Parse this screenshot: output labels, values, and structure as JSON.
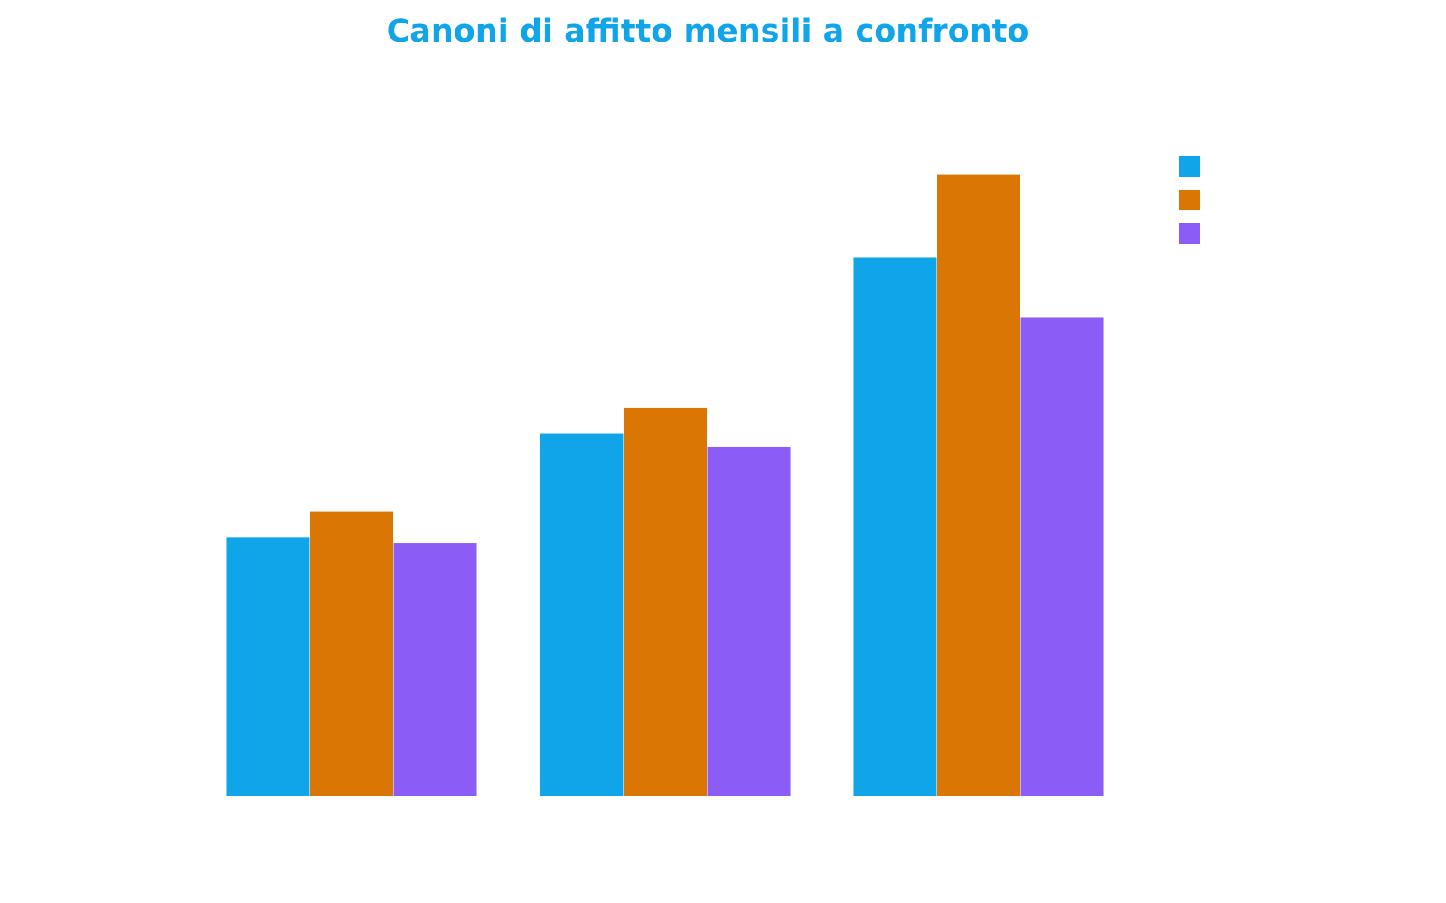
{
  "chart_data": {
    "type": "bar",
    "title": "Canoni di affitto mensili a confronto",
    "categories": [
      null,
      null,
      null
    ],
    "series": [
      {
        "color": "#10a5e8",
        "values": [
          500,
          700,
          1040
        ]
      },
      {
        "color": "#d97604",
        "values": [
          550,
          750,
          1200
        ]
      },
      {
        "color": "#8b5cf6",
        "values": [
          490,
          675,
          925
        ]
      }
    ],
    "ylim": [
      0,
      1300
    ]
  }
}
